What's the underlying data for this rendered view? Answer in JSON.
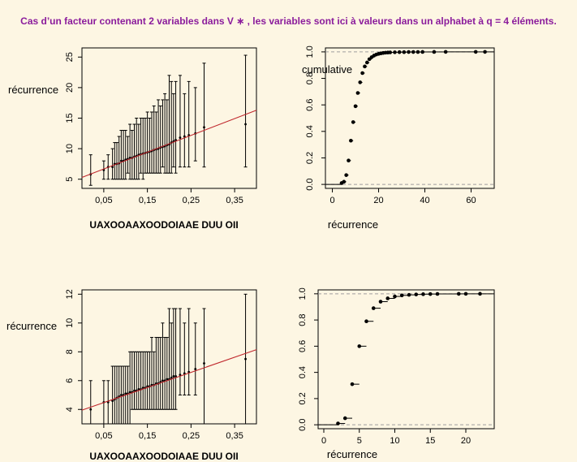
{
  "title": "Cas d’un facteur contenant 2 variables dans V ∗ , les variables sont ici à valeurs dans un alphabet à q = 4 éléments.",
  "colors": {
    "background": "#FDF6E3",
    "title": "#8B1C9C",
    "fit_line": "#C0282D",
    "refline": "#9E9E9E",
    "ink": "#000000"
  },
  "chart_data": [
    {
      "id": "top-left",
      "type": "errorbar-scatter",
      "xlabel": "UAXOOAAXOODOIAAE DUU OII",
      "ylabel": "récurrence",
      "xticks": [
        "0,05",
        "0,15",
        "0,25",
        "0,35"
      ],
      "xtick_values": [
        0.05,
        0.15,
        0.25,
        0.35
      ],
      "yticks": [
        "5",
        "10",
        "15",
        "20",
        "25"
      ],
      "ytick_values": [
        5,
        10,
        15,
        20,
        25
      ],
      "xlim": [
        0.0,
        0.4
      ],
      "ylim": [
        3.5,
        26.5
      ],
      "fit_line": {
        "intercept": 5.3,
        "slope": 27.5
      },
      "points": [
        {
          "x": 0.02,
          "y": 5.8,
          "lo": 4,
          "hi": 9
        },
        {
          "x": 0.05,
          "y": 6.5,
          "lo": 5,
          "hi": 8
        },
        {
          "x": 0.06,
          "y": 7.0,
          "lo": 5,
          "hi": 9
        },
        {
          "x": 0.07,
          "y": 7.0,
          "lo": 5,
          "hi": 10
        },
        {
          "x": 0.075,
          "y": 7.5,
          "lo": 5,
          "hi": 11
        },
        {
          "x": 0.08,
          "y": 7.5,
          "lo": 5,
          "hi": 11
        },
        {
          "x": 0.085,
          "y": 7.6,
          "lo": 5,
          "hi": 12
        },
        {
          "x": 0.09,
          "y": 8.0,
          "lo": 5,
          "hi": 13
        },
        {
          "x": 0.095,
          "y": 8.0,
          "lo": 5,
          "hi": 13
        },
        {
          "x": 0.1,
          "y": 8.2,
          "lo": 5,
          "hi": 13
        },
        {
          "x": 0.105,
          "y": 8.3,
          "lo": 6,
          "hi": 12
        },
        {
          "x": 0.11,
          "y": 8.5,
          "lo": 5,
          "hi": 14
        },
        {
          "x": 0.115,
          "y": 8.5,
          "lo": 5,
          "hi": 13
        },
        {
          "x": 0.12,
          "y": 8.7,
          "lo": 5,
          "hi": 14
        },
        {
          "x": 0.125,
          "y": 8.8,
          "lo": 5,
          "hi": 15
        },
        {
          "x": 0.13,
          "y": 9.0,
          "lo": 5,
          "hi": 14
        },
        {
          "x": 0.135,
          "y": 9.1,
          "lo": 6,
          "hi": 15
        },
        {
          "x": 0.14,
          "y": 9.2,
          "lo": 5,
          "hi": 15
        },
        {
          "x": 0.145,
          "y": 9.3,
          "lo": 6,
          "hi": 15
        },
        {
          "x": 0.15,
          "y": 9.4,
          "lo": 6,
          "hi": 16
        },
        {
          "x": 0.155,
          "y": 9.5,
          "lo": 6,
          "hi": 15
        },
        {
          "x": 0.16,
          "y": 9.6,
          "lo": 6,
          "hi": 16
        },
        {
          "x": 0.165,
          "y": 9.8,
          "lo": 6,
          "hi": 17
        },
        {
          "x": 0.17,
          "y": 9.9,
          "lo": 6,
          "hi": 16
        },
        {
          "x": 0.175,
          "y": 10.0,
          "lo": 6,
          "hi": 18
        },
        {
          "x": 0.18,
          "y": 10.2,
          "lo": 6,
          "hi": 17
        },
        {
          "x": 0.185,
          "y": 10.3,
          "lo": 7,
          "hi": 18
        },
        {
          "x": 0.19,
          "y": 10.4,
          "lo": 6,
          "hi": 19
        },
        {
          "x": 0.195,
          "y": 10.6,
          "lo": 6,
          "hi": 18
        },
        {
          "x": 0.2,
          "y": 10.7,
          "lo": 6,
          "hi": 22
        },
        {
          "x": 0.205,
          "y": 11.0,
          "lo": 6,
          "hi": 21
        },
        {
          "x": 0.21,
          "y": 11.2,
          "lo": 7,
          "hi": 19
        },
        {
          "x": 0.215,
          "y": 11.4,
          "lo": 6,
          "hi": 21
        },
        {
          "x": 0.225,
          "y": 11.8,
          "lo": 7,
          "hi": 22
        },
        {
          "x": 0.235,
          "y": 12.0,
          "lo": 7,
          "hi": 19
        },
        {
          "x": 0.245,
          "y": 12.2,
          "lo": 7,
          "hi": 21
        },
        {
          "x": 0.26,
          "y": 12.5,
          "lo": 8,
          "hi": 20
        },
        {
          "x": 0.28,
          "y": 13.5,
          "lo": 7,
          "hi": 24
        },
        {
          "x": 0.375,
          "y": 14.0,
          "lo": 7,
          "hi": 25.3
        }
      ]
    },
    {
      "id": "top-right",
      "type": "ecdf",
      "xlabel": "récurrence",
      "ylabel": "cumulative",
      "xticks": [
        "0",
        "20",
        "40",
        "60"
      ],
      "xtick_values": [
        0,
        20,
        40,
        60
      ],
      "yticks": [
        "0.0",
        "0.2",
        "0.4",
        "0.6",
        "0.8",
        "1.0"
      ],
      "ytick_values": [
        0,
        0.2,
        0.4,
        0.6,
        0.8,
        1.0
      ],
      "xlim": [
        -3,
        70
      ],
      "ylim": [
        -0.03,
        1.03
      ],
      "points": [
        {
          "x": 4,
          "y": 0.01
        },
        {
          "x": 5,
          "y": 0.02
        },
        {
          "x": 6,
          "y": 0.07
        },
        {
          "x": 7,
          "y": 0.18
        },
        {
          "x": 8,
          "y": 0.33
        },
        {
          "x": 9,
          "y": 0.47
        },
        {
          "x": 10,
          "y": 0.59
        },
        {
          "x": 11,
          "y": 0.69
        },
        {
          "x": 12,
          "y": 0.77
        },
        {
          "x": 13,
          "y": 0.84
        },
        {
          "x": 14,
          "y": 0.89
        },
        {
          "x": 15,
          "y": 0.92
        },
        {
          "x": 16,
          "y": 0.945
        },
        {
          "x": 17,
          "y": 0.96
        },
        {
          "x": 18,
          "y": 0.972
        },
        {
          "x": 19,
          "y": 0.98
        },
        {
          "x": 20,
          "y": 0.985
        },
        {
          "x": 21,
          "y": 0.989
        },
        {
          "x": 22,
          "y": 0.992
        },
        {
          "x": 23,
          "y": 0.994
        },
        {
          "x": 24,
          "y": 0.995
        },
        {
          "x": 25,
          "y": 0.996
        },
        {
          "x": 27,
          "y": 0.997
        },
        {
          "x": 29,
          "y": 0.998
        },
        {
          "x": 31,
          "y": 0.998
        },
        {
          "x": 33,
          "y": 0.999
        },
        {
          "x": 35,
          "y": 0.999
        },
        {
          "x": 37,
          "y": 0.999
        },
        {
          "x": 39,
          "y": 0.9995
        },
        {
          "x": 44,
          "y": 0.9997
        },
        {
          "x": 49,
          "y": 0.9998
        },
        {
          "x": 62,
          "y": 0.9999
        },
        {
          "x": 66,
          "y": 1.0
        }
      ]
    },
    {
      "id": "bottom-left",
      "type": "errorbar-scatter",
      "xlabel": "UAXOOAAXOODOIAAE DUU OII",
      "ylabel": "récurrence",
      "xticks": [
        "0,05",
        "0,15",
        "0,25",
        "0,35"
      ],
      "xtick_values": [
        0.05,
        0.15,
        0.25,
        0.35
      ],
      "yticks": [
        "4",
        "6",
        "8",
        "10",
        "12"
      ],
      "ytick_values": [
        4,
        6,
        8,
        10,
        12
      ],
      "xlim": [
        0.0,
        0.4
      ],
      "ylim": [
        3.0,
        12.3
      ],
      "fit_line": {
        "intercept": 3.95,
        "slope": 10.5
      },
      "points": [
        {
          "x": 0.02,
          "y": 4.0,
          "lo": 3,
          "hi": 6
        },
        {
          "x": 0.05,
          "y": 4.5,
          "lo": 3,
          "hi": 6
        },
        {
          "x": 0.06,
          "y": 4.5,
          "lo": 3,
          "hi": 6
        },
        {
          "x": 0.07,
          "y": 4.6,
          "lo": 3,
          "hi": 7
        },
        {
          "x": 0.075,
          "y": 4.7,
          "lo": 3,
          "hi": 7
        },
        {
          "x": 0.08,
          "y": 4.8,
          "lo": 3,
          "hi": 7
        },
        {
          "x": 0.085,
          "y": 4.9,
          "lo": 3,
          "hi": 7
        },
        {
          "x": 0.09,
          "y": 5.0,
          "lo": 3,
          "hi": 7
        },
        {
          "x": 0.095,
          "y": 5.0,
          "lo": 3,
          "hi": 7
        },
        {
          "x": 0.1,
          "y": 5.1,
          "lo": 3,
          "hi": 7
        },
        {
          "x": 0.105,
          "y": 5.1,
          "lo": 3,
          "hi": 7
        },
        {
          "x": 0.11,
          "y": 5.2,
          "lo": 3,
          "hi": 8
        },
        {
          "x": 0.115,
          "y": 5.2,
          "lo": 4,
          "hi": 8
        },
        {
          "x": 0.12,
          "y": 5.3,
          "lo": 4,
          "hi": 8
        },
        {
          "x": 0.125,
          "y": 5.3,
          "lo": 4,
          "hi": 8
        },
        {
          "x": 0.13,
          "y": 5.4,
          "lo": 4,
          "hi": 8
        },
        {
          "x": 0.135,
          "y": 5.4,
          "lo": 4,
          "hi": 8
        },
        {
          "x": 0.14,
          "y": 5.5,
          "lo": 4,
          "hi": 8
        },
        {
          "x": 0.145,
          "y": 5.5,
          "lo": 4,
          "hi": 8
        },
        {
          "x": 0.15,
          "y": 5.6,
          "lo": 4,
          "hi": 8
        },
        {
          "x": 0.155,
          "y": 5.6,
          "lo": 4,
          "hi": 8
        },
        {
          "x": 0.16,
          "y": 5.7,
          "lo": 4,
          "hi": 9
        },
        {
          "x": 0.165,
          "y": 5.7,
          "lo": 4,
          "hi": 8
        },
        {
          "x": 0.17,
          "y": 5.8,
          "lo": 4,
          "hi": 9
        },
        {
          "x": 0.175,
          "y": 5.8,
          "lo": 4,
          "hi": 9
        },
        {
          "x": 0.18,
          "y": 5.9,
          "lo": 4,
          "hi": 9
        },
        {
          "x": 0.185,
          "y": 6.0,
          "lo": 4,
          "hi": 10
        },
        {
          "x": 0.19,
          "y": 6.0,
          "lo": 4,
          "hi": 9
        },
        {
          "x": 0.195,
          "y": 6.1,
          "lo": 4,
          "hi": 9
        },
        {
          "x": 0.2,
          "y": 6.1,
          "lo": 4,
          "hi": 11
        },
        {
          "x": 0.205,
          "y": 6.2,
          "lo": 4,
          "hi": 10
        },
        {
          "x": 0.21,
          "y": 6.3,
          "lo": 4,
          "hi": 11
        },
        {
          "x": 0.215,
          "y": 6.3,
          "lo": 4,
          "hi": 11
        },
        {
          "x": 0.225,
          "y": 6.4,
          "lo": 5,
          "hi": 11
        },
        {
          "x": 0.235,
          "y": 6.5,
          "lo": 5,
          "hi": 10
        },
        {
          "x": 0.245,
          "y": 6.6,
          "lo": 5,
          "hi": 11
        },
        {
          "x": 0.26,
          "y": 6.8,
          "lo": 5,
          "hi": 10
        },
        {
          "x": 0.28,
          "y": 7.2,
          "lo": 3,
          "hi": 11
        },
        {
          "x": 0.375,
          "y": 7.5,
          "lo": 3,
          "hi": 12
        }
      ]
    },
    {
      "id": "bottom-right",
      "type": "ecdf",
      "xlabel": "récurrence",
      "ylabel": "",
      "xticks": [
        "0",
        "5",
        "10",
        "15",
        "20"
      ],
      "xtick_values": [
        0,
        5,
        10,
        15,
        20
      ],
      "yticks": [
        "0.0",
        "0.2",
        "0.4",
        "0.6",
        "0.8",
        "1.0"
      ],
      "ytick_values": [
        0,
        0.2,
        0.4,
        0.6,
        0.8,
        1.0
      ],
      "xlim": [
        -0.8,
        24
      ],
      "ylim": [
        -0.03,
        1.03
      ],
      "points": [
        {
          "x": 2,
          "y": 0.01
        },
        {
          "x": 3,
          "y": 0.05
        },
        {
          "x": 4,
          "y": 0.31
        },
        {
          "x": 5,
          "y": 0.6
        },
        {
          "x": 6,
          "y": 0.79
        },
        {
          "x": 7,
          "y": 0.89
        },
        {
          "x": 8,
          "y": 0.94
        },
        {
          "x": 9,
          "y": 0.965
        },
        {
          "x": 10,
          "y": 0.98
        },
        {
          "x": 11,
          "y": 0.988
        },
        {
          "x": 12,
          "y": 0.992
        },
        {
          "x": 13,
          "y": 0.995
        },
        {
          "x": 14,
          "y": 0.997
        },
        {
          "x": 15,
          "y": 0.998
        },
        {
          "x": 16,
          "y": 0.999
        },
        {
          "x": 19,
          "y": 0.9995
        },
        {
          "x": 20,
          "y": 0.9998
        },
        {
          "x": 22,
          "y": 1.0
        }
      ]
    }
  ]
}
